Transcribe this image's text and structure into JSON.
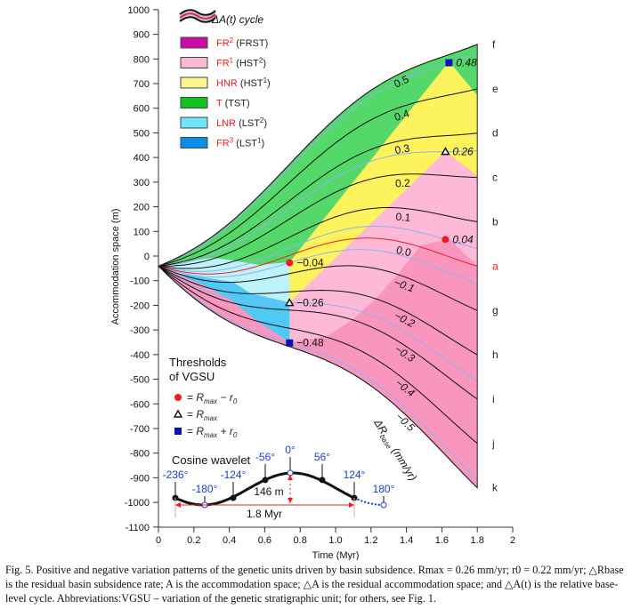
{
  "chart_data": {
    "type": "line",
    "xlabel": "Time (Myr)",
    "ylabel": "Accommodation space (m)",
    "xlim": [
      0,
      2
    ],
    "ylim": [
      -1100,
      1000
    ],
    "xticks": [
      "0",
      "0.2",
      "0.4",
      "0.6",
      "0.8",
      "1.0",
      "1.2",
      "1.4",
      "1.6",
      "1.8",
      "2"
    ],
    "yticks": [
      "1000",
      "900",
      "800",
      "700",
      "600",
      "500",
      "400",
      "300",
      "200",
      "100",
      "0",
      "-100",
      "-200",
      "-300",
      "-400",
      "-500",
      "-600",
      "-700",
      "-800",
      "-900",
      "-1000",
      "-1100"
    ],
    "grid": false,
    "series": [
      {
        "r": 0.5,
        "label": "0.5",
        "letter": "f"
      },
      {
        "r": 0.4,
        "label": "0.4",
        "letter": "e"
      },
      {
        "r": 0.3,
        "label": "0.3",
        "letter": "d"
      },
      {
        "r": 0.2,
        "label": "0.2",
        "letter": "c"
      },
      {
        "r": 0.1,
        "label": "0.1",
        "letter": "b"
      },
      {
        "r": 0.0,
        "label": "0.0",
        "letter": "a",
        "color": "#ee1c24"
      },
      {
        "r": -0.1,
        "label": "−0.1",
        "letter": "g"
      },
      {
        "r": -0.2,
        "label": "−0.2",
        "letter": "h"
      },
      {
        "r": -0.3,
        "label": "−0.3",
        "letter": "i"
      },
      {
        "r": -0.4,
        "label": "−0.4",
        "letter": "j"
      },
      {
        "r": -0.5,
        "label": "−0.5",
        "letter": "k"
      }
    ],
    "threshold_lines": [
      0.48,
      0.26,
      0.04,
      -0.04,
      -0.26,
      -0.48
    ],
    "threshold_points": [
      {
        "t": 0.74,
        "r": -0.04,
        "label": "−0.04",
        "marker": "circle"
      },
      {
        "t": 0.74,
        "r": -0.26,
        "label": "−0.26",
        "marker": "triangle"
      },
      {
        "t": 0.74,
        "r": -0.48,
        "label": "−0.48",
        "marker": "square"
      },
      {
        "t": 1.64,
        "r": 0.48,
        "label": "0.48",
        "marker": "square"
      },
      {
        "t": 1.62,
        "r": 0.26,
        "label": "0.26",
        "marker": "triangle"
      },
      {
        "t": 1.62,
        "r": 0.04,
        "label": "0.04",
        "marker": "circle"
      }
    ],
    "curve_axis_label": "ΔR",
    "curve_axis_sub": "base",
    "curve_axis_unit": " (mm/yr)"
  },
  "legend": {
    "cycle_label": "ΔA(t) cycle",
    "items": [
      {
        "code": "FR",
        "sup": "2",
        "paren": " (FRST)",
        "psup": "",
        "pend": "",
        "color": "#cc0aa8"
      },
      {
        "code": "FR",
        "sup": "1",
        "paren": " (HST",
        "psup": "2",
        "pend": ")",
        "color": "#fdb8d5"
      },
      {
        "code": "HNR",
        "sup": "",
        "paren": " (HST",
        "psup": "1",
        "pend": ")",
        "color": "#fdf58e"
      },
      {
        "code": "T",
        "sup": "",
        "paren": " (TST)",
        "psup": "",
        "pend": "",
        "color": "#12c21e"
      },
      {
        "code": "LNR",
        "sup": "",
        "paren": " (LST",
        "psup": "2",
        "pend": ")",
        "color": "#6fe6fb"
      },
      {
        "code": "FR",
        "sup": "3",
        "paren": " (LST",
        "psup": "1",
        "pend": ")",
        "color": "#0a8ee6"
      }
    ]
  },
  "thresholds": {
    "title1": "Thresholds",
    "title2": "of VGSU",
    "items": [
      {
        "marker": "circle",
        "eq": "= ",
        "R": "R",
        "sub": "max",
        "rest": " − r",
        "rsub": "0"
      },
      {
        "marker": "triangle",
        "eq": "= ",
        "R": "R",
        "sub": "max",
        "rest": "",
        "rsub": ""
      },
      {
        "marker": "square",
        "eq": "= ",
        "R": "R",
        "sub": "max",
        "rest": " + r",
        "rsub": "0"
      }
    ]
  },
  "wavelet": {
    "title": "Cosine wavelet",
    "phases": [
      "-236°",
      "-180°",
      "-124°",
      "-56°",
      "0°",
      "56°",
      "124°",
      "180°"
    ],
    "amplitude_label": "146 m",
    "period_label": "1.8 Myr",
    "amplitude_m": 146,
    "period_myr": 1.8
  },
  "colors": {
    "green": "#55d86a",
    "yellow": "#fdf35c",
    "light_pink": "#fdb9d6",
    "dark_pink": "#f996be",
    "light_cyan": "#bff3fb",
    "blue": "#4fcaf6",
    "threshold_line": "#8fb0f0",
    "red": "#ee1c24",
    "marker_blue": "#0a14b4"
  },
  "caption": "Fig. 5. Positive and negative variation patterns of the genetic units driven by basin subsidence. Rmax = 0.26 mm/yr; r0 = 0.22 mm/yr; △Rbase is the residual basin subsidence rate; A is the accommodation space; △A is the residual accommodation space; and △A(t) is the relative base-level cycle. Abbreviations:VGSU – variation of the genetic stratigraphic unit; for others, see Fig. 1."
}
